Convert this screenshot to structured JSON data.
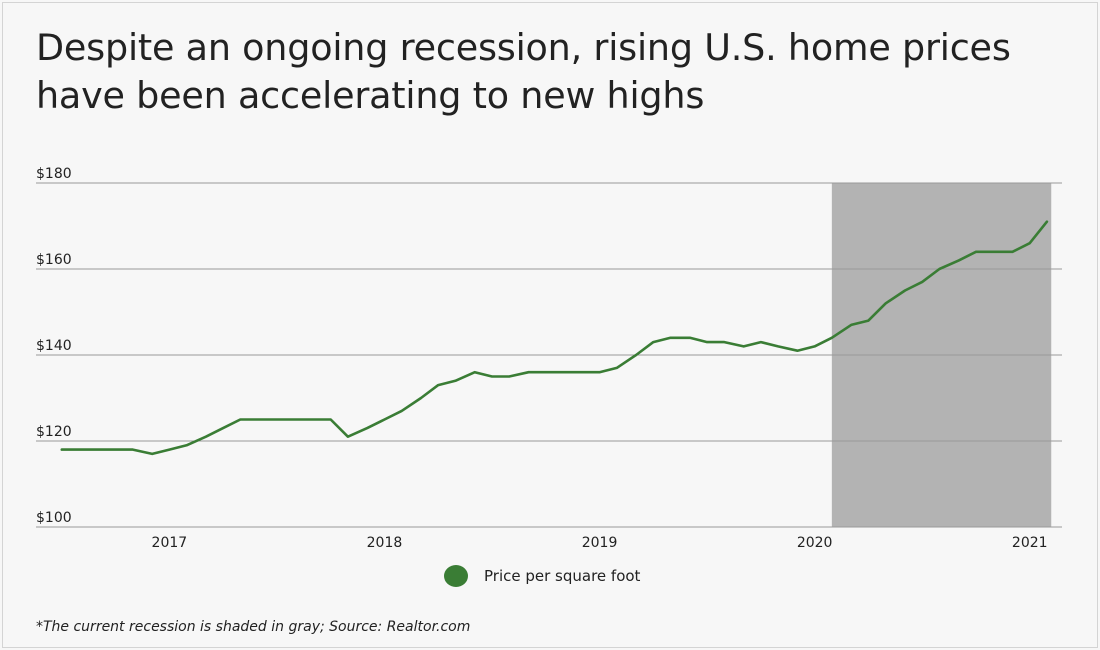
{
  "title_line1": "Despite an ongoing recession, rising U.S. home prices",
  "title_line2": "have been accelerating to new highs",
  "footnote": "*The current recession is shaded in gray; Source: Realtor.com",
  "colors": {
    "line": "#3a7d35",
    "recession_shade": "#b3b3b3",
    "grid": "#9a9a9a"
  },
  "chart_data": {
    "type": "line",
    "title": "Despite an ongoing recession, rising U.S. home prices have been accelerating to new highs",
    "xlabel": "",
    "ylabel": "",
    "ylim": [
      100,
      180
    ],
    "y_ticks": [
      100,
      120,
      140,
      160,
      180
    ],
    "y_tick_labels": [
      "$100",
      "$120",
      "$140",
      "$160",
      "$180"
    ],
    "x_tick_values": [
      2017.0,
      2018.0,
      2019.0,
      2020.0,
      2021.0
    ],
    "x_tick_labels": [
      "2017",
      "2018",
      "2019",
      "2020",
      "2021"
    ],
    "xlim": [
      2016.38,
      2021.15
    ],
    "recession_shading": {
      "start": 2020.08,
      "end": 2021.1,
      "note": "current recession"
    },
    "legend_position": "bottom-center",
    "series": [
      {
        "name": "Price per square foot",
        "x": [
          2016.5,
          2016.58,
          2016.67,
          2016.75,
          2016.83,
          2016.92,
          2017.0,
          2017.08,
          2017.17,
          2017.25,
          2017.33,
          2017.42,
          2017.5,
          2017.58,
          2017.67,
          2017.75,
          2017.83,
          2017.92,
          2018.0,
          2018.08,
          2018.17,
          2018.25,
          2018.33,
          2018.42,
          2018.5,
          2018.58,
          2018.67,
          2018.75,
          2018.83,
          2018.92,
          2019.0,
          2019.08,
          2019.17,
          2019.25,
          2019.33,
          2019.42,
          2019.5,
          2019.58,
          2019.67,
          2019.75,
          2019.83,
          2019.92,
          2020.0,
          2020.08,
          2020.17,
          2020.25,
          2020.33,
          2020.42,
          2020.5,
          2020.58,
          2020.67,
          2020.75,
          2020.83,
          2020.92,
          2021.0,
          2021.08
        ],
        "values": [
          118,
          118,
          118,
          118,
          118,
          117,
          118,
          119,
          121,
          123,
          125,
          125,
          125,
          125,
          125,
          125,
          121,
          123,
          125,
          127,
          130,
          133,
          134,
          136,
          135,
          135,
          136,
          136,
          136,
          136,
          136,
          137,
          140,
          143,
          144,
          144,
          143,
          143,
          142,
          143,
          142,
          141,
          142,
          144,
          147,
          148,
          152,
          155,
          157,
          160,
          162,
          164,
          164,
          164,
          166,
          171
        ]
      }
    ]
  }
}
